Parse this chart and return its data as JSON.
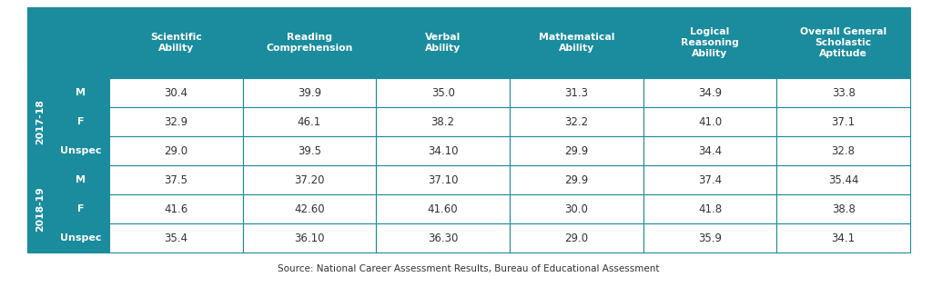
{
  "source": "Source: National Career Assessment Results, Bureau of Educational Assessment",
  "header_bg": "#1a8c9e",
  "header_text": "#ffffff",
  "cell_bg": "#ffffff",
  "cell_text": "#333333",
  "border_color": "#1a8c9e",
  "col_headers": [
    "Scientific\nAbility",
    "Reading\nComprehension",
    "Verbal\nAbility",
    "Mathematical\nAbility",
    "Logical\nReasoning\nAbility",
    "Overall General\nScholastic\nAptitude"
  ],
  "sy_labels": [
    "2017-18",
    "2018-19"
  ],
  "gender_labels": [
    "M",
    "F",
    "Unspec"
  ],
  "data_fmt": {
    "2017-18": {
      "M": [
        "30.4",
        "39.9",
        "35.0",
        "31.3",
        "34.9",
        "33.8"
      ],
      "F": [
        "32.9",
        "46.1",
        "38.2",
        "32.2",
        "41.0",
        "37.1"
      ],
      "Unspec": [
        "29.0",
        "39.5",
        "34.10",
        "29.9",
        "34.4",
        "32.8"
      ]
    },
    "2018-19": {
      "M": [
        "37.5",
        "37.20",
        "37.10",
        "29.9",
        "37.4",
        "35.44"
      ],
      "F": [
        "41.6",
        "42.60",
        "41.60",
        "30.0",
        "41.8",
        "38.8"
      ],
      "Unspec": [
        "35.4",
        "36.10",
        "36.30",
        "29.0",
        "35.9",
        "34.1"
      ]
    }
  }
}
